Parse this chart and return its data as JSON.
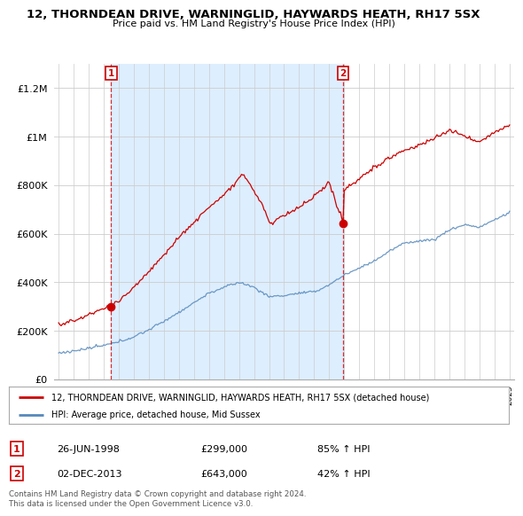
{
  "title": "12, THORNDEAN DRIVE, WARNINGLID, HAYWARDS HEATH, RH17 5SX",
  "subtitle": "Price paid vs. HM Land Registry's House Price Index (HPI)",
  "legend_line1": "12, THORNDEAN DRIVE, WARNINGLID, HAYWARDS HEATH, RH17 5SX (detached house)",
  "legend_line2": "HPI: Average price, detached house, Mid Sussex",
  "sale1_date": "26-JUN-1998",
  "sale1_price": "£299,000",
  "sale1_hpi": "85% ↑ HPI",
  "sale2_date": "02-DEC-2013",
  "sale2_price": "£643,000",
  "sale2_hpi": "42% ↑ HPI",
  "footer": "Contains HM Land Registry data © Crown copyright and database right 2024.\nThis data is licensed under the Open Government Licence v3.0.",
  "red_color": "#cc0000",
  "blue_color": "#5588bb",
  "shade_color": "#ddeeff",
  "bg_color": "#ffffff",
  "grid_color": "#cccccc",
  "ylim": [
    0,
    1300000
  ],
  "yticks": [
    0,
    200000,
    400000,
    600000,
    800000,
    1000000,
    1200000
  ],
  "ytick_labels": [
    "£0",
    "£200K",
    "£400K",
    "£600K",
    "£800K",
    "£1M",
    "£1.2M"
  ],
  "sale1_year": 1998.5,
  "sale1_price_val": 299000,
  "sale2_year": 2013.917,
  "sale2_price_val": 643000,
  "xstart": 1995,
  "xend": 2025
}
